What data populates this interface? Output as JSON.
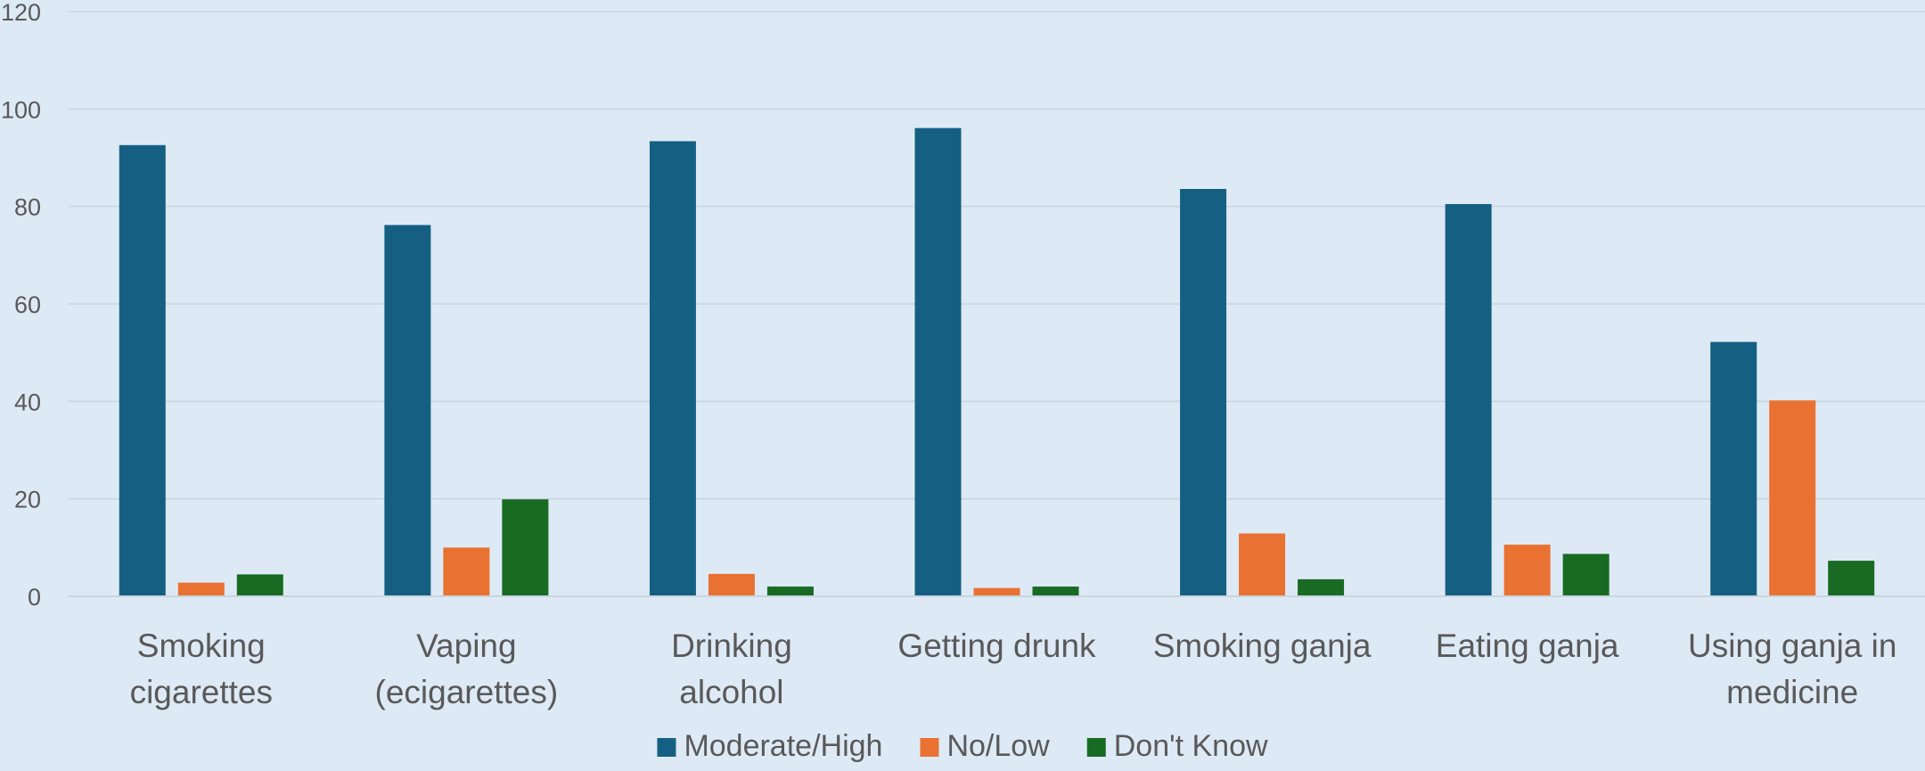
{
  "chart_data": {
    "type": "bar",
    "title": "",
    "xlabel": "",
    "ylabel": "",
    "ylim": [
      0,
      120
    ],
    "yticks": [
      "0",
      "20",
      "40",
      "60",
      "80",
      "100",
      "120"
    ],
    "grid": true,
    "legend_position": "bottom",
    "categories": [
      [
        "Smoking",
        "cigarettes"
      ],
      [
        "Vaping",
        "(ecigarettes)"
      ],
      [
        "Drinking",
        "alcohol"
      ],
      [
        "Getting drunk"
      ],
      [
        "Smoking ganja"
      ],
      [
        "Eating ganja"
      ],
      [
        "Using ganja in",
        "medicine"
      ]
    ],
    "series": [
      {
        "name": "Moderate/High",
        "color": "#156082",
        "values": [
          92.6,
          76.2,
          93.4,
          96.1,
          83.6,
          80.5,
          52.2
        ]
      },
      {
        "name": "No/Low",
        "color": "#e97132",
        "values": [
          2.8,
          10.0,
          4.6,
          1.7,
          12.9,
          10.6,
          40.2
        ]
      },
      {
        "name": "Don't Know",
        "color": "#196b24",
        "values": [
          4.5,
          19.9,
          2.0,
          2.0,
          3.5,
          8.7,
          7.3
        ]
      }
    ]
  }
}
